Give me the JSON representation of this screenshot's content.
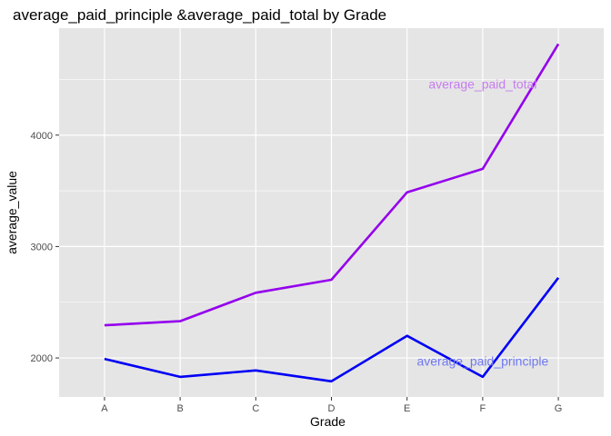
{
  "chart_data": {
    "type": "line",
    "title": "average_paid_principle &average_paid_total by Grade",
    "xlabel": "Grade",
    "ylabel": "average_value",
    "categories": [
      "A",
      "B",
      "C",
      "D",
      "E",
      "F",
      "G"
    ],
    "series": [
      {
        "name": "average_paid_total",
        "color": "#9400ED",
        "values": [
          2293,
          2330,
          2585,
          2702,
          3487,
          3697,
          4818
        ]
      },
      {
        "name": "average_paid_principle",
        "color": "#0000F5",
        "values": [
          1992,
          1830,
          1888,
          1790,
          2199,
          1830,
          2720
        ]
      }
    ],
    "annotations": [
      {
        "text": "average_paid_total",
        "x": "F",
        "y": 4460,
        "color": "#C77CF0"
      },
      {
        "text": "average_paid_principle",
        "x": "F",
        "y": 1970,
        "color": "#6F78F2"
      }
    ],
    "ylim": [
      1650,
      4960
    ],
    "yticks": [
      2000,
      3000,
      4000
    ],
    "grid": true,
    "background": "#E5E5E5",
    "gridColor": "#FFFFFF"
  }
}
